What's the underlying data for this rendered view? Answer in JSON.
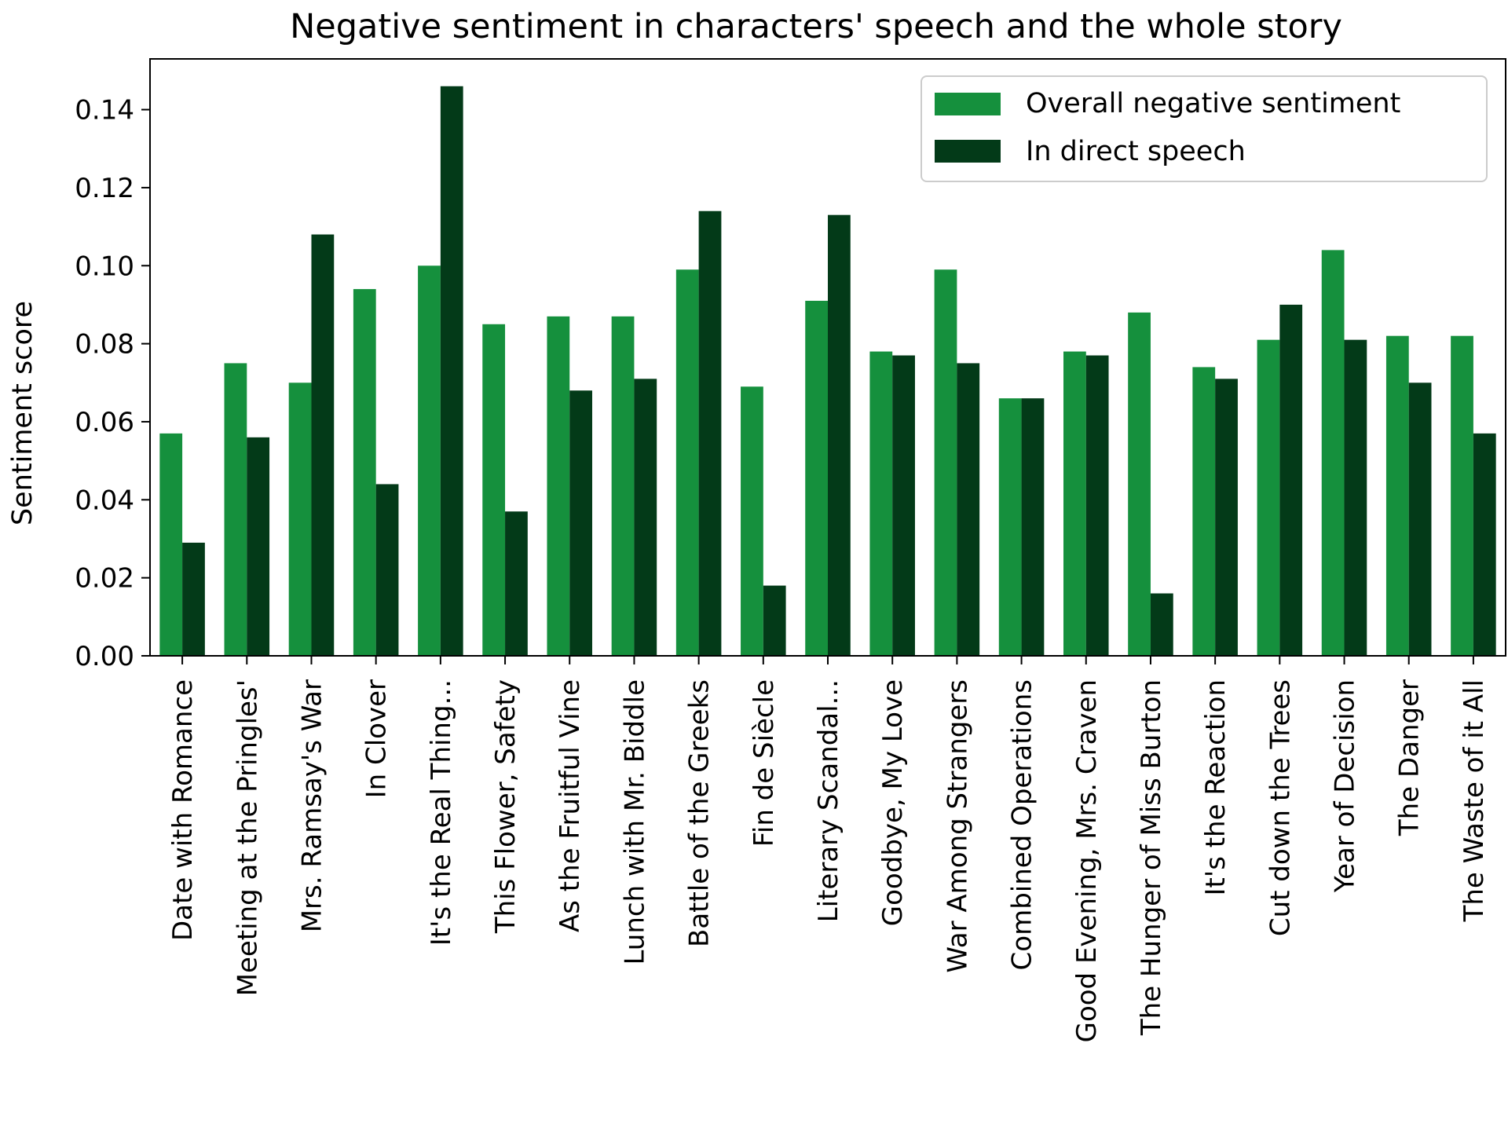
{
  "chart_data": {
    "type": "bar",
    "title": "Negative sentiment in characters' speech and the whole story",
    "xlabel": "",
    "ylabel": "Sentiment score",
    "ylim": [
      0,
      0.153
    ],
    "yticks": [
      "0.00",
      "0.02",
      "0.04",
      "0.06",
      "0.08",
      "0.10",
      "0.12",
      "0.14"
    ],
    "grid": false,
    "legend_position": "top-right",
    "categories": [
      "Date with Romance",
      "Meeting at the Pringles'",
      "Mrs. Ramsay's War",
      "In Clover",
      "It's the Real Thing...",
      "This Flower, Safety",
      "As the Fruitful Vine",
      "Lunch with Mr. Biddle",
      "Battle of the Greeks",
      "Fin de Siècle",
      "Literary Scandal...",
      "Goodbye, My Love",
      "War Among Strangers",
      "Combined Operations",
      "Good Evening, Mrs. Craven",
      "The Hunger of Miss Burton",
      "It's the Reaction",
      "Cut down the Trees",
      "Year of Decision",
      "The Danger",
      "The Waste of it All"
    ],
    "series": [
      {
        "name": "Overall negative sentiment",
        "color": "#15903d",
        "values": [
          0.057,
          0.075,
          0.07,
          0.094,
          0.1,
          0.085,
          0.087,
          0.087,
          0.099,
          0.069,
          0.091,
          0.078,
          0.099,
          0.066,
          0.078,
          0.088,
          0.074,
          0.081,
          0.104,
          0.082,
          0.082
        ]
      },
      {
        "name": "In direct speech",
        "color": "#033a18",
        "values": [
          0.029,
          0.056,
          0.108,
          0.044,
          0.146,
          0.037,
          0.068,
          0.071,
          0.114,
          0.018,
          0.113,
          0.077,
          0.075,
          0.066,
          0.077,
          0.016,
          0.071,
          0.09,
          0.081,
          0.07,
          0.057
        ]
      }
    ]
  }
}
